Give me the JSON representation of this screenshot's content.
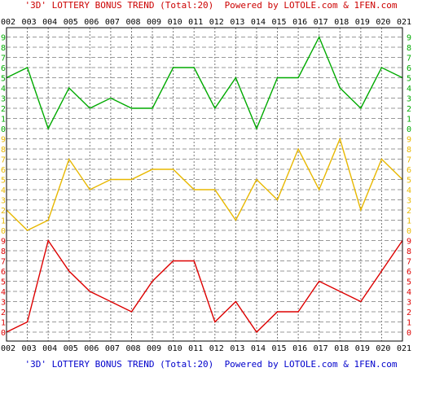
{
  "header": {
    "title": "'3D' LOTTERY BONUS TREND (Total:20)",
    "powered": "Powered by LOTOLE.com & 1FEN.com"
  },
  "footer": {
    "title": "'3D' LOTTERY BONUS TREND (Total:20)",
    "powered": "Powered by LOTOLE.com & 1FEN.com"
  },
  "colors": {
    "background": "#ffffff",
    "frame": "#000000",
    "grid_major": "#777777",
    "grid_minor": "#999999",
    "title_red": "#cc0000",
    "title_blue": "#0000cc",
    "tick_labels": "#000000"
  },
  "chart_data": {
    "type": "line",
    "grid": true,
    "categories": [
      "002",
      "003",
      "004",
      "005",
      "006",
      "007",
      "008",
      "009",
      "010",
      "011",
      "012",
      "013",
      "014",
      "015",
      "016",
      "017",
      "018",
      "019",
      "020",
      "021"
    ],
    "series": [
      {
        "band": "top",
        "color": "#00aa00",
        "values": [
          5,
          6,
          0,
          4,
          2,
          3,
          2,
          2,
          6,
          6,
          2,
          5,
          0,
          5,
          5,
          9,
          4,
          2,
          6,
          5
        ]
      },
      {
        "band": "middle",
        "color": "#e8b800",
        "values": [
          2,
          0,
          1,
          7,
          4,
          5,
          5,
          6,
          6,
          4,
          4,
          1,
          5,
          3,
          8,
          4,
          9,
          2,
          7,
          5
        ]
      },
      {
        "band": "bottom",
        "color": "#dd0000",
        "values": [
          0,
          1,
          9,
          6,
          4,
          3,
          2,
          5,
          7,
          7,
          1,
          3,
          0,
          2,
          2,
          5,
          4,
          3,
          6,
          9
        ]
      }
    ],
    "band_axis": {
      "ylim": [
        0,
        9
      ],
      "ticks": [
        "0",
        "1",
        "2",
        "3",
        "4",
        "5",
        "6",
        "7",
        "8",
        "9"
      ]
    },
    "axis_label_colors": {
      "top": "#00aa00",
      "middle": "#e8b800",
      "bottom": "#dd0000"
    }
  }
}
